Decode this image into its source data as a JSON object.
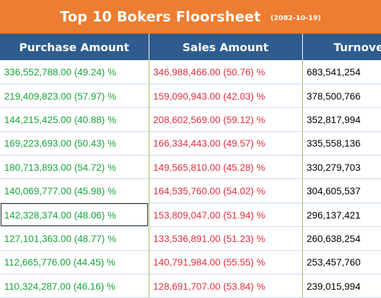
{
  "header": {
    "title": "Top 10 Bokers Floorsheet",
    "date": "(2082-10-19)"
  },
  "columns": [
    "Purchase Amount",
    "Sales Amount",
    "Turnove"
  ],
  "rows": [
    {
      "purchase": "336,552,788.00 (49.24) %",
      "sales": "346,988,466.00 (50.76) %",
      "turnover": "683,541,254"
    },
    {
      "purchase": "219,409,823.00 (57.97) %",
      "sales": "159,090,943.00 (42.03) %",
      "turnover": "378,500,766"
    },
    {
      "purchase": "144,215,425.00 (40.88) %",
      "sales": "208,602,569.00 (59.12) %",
      "turnover": "352,817,994"
    },
    {
      "purchase": "169,223,693.00 (50.43) %",
      "sales": "166,334,443.00 (49.57) %",
      "turnover": "335,558,136"
    },
    {
      "purchase": "180,713,893.00 (54.72) %",
      "sales": "149,565,810.00 (45.28) %",
      "turnover": "330,279,703"
    },
    {
      "purchase": "140,069,777.00 (45.98) %",
      "sales": "164,535,760.00 (54.02) %",
      "turnover": "304,605,537"
    },
    {
      "purchase": "142,328,374.00 (48.06) %",
      "sales": "153,809,047.00 (51.94) %",
      "turnover": "296,137,421"
    },
    {
      "purchase": "127,101,363.00 (48.77) %",
      "sales": "133,536,891.00 (51.23) %",
      "turnover": "260,638,254"
    },
    {
      "purchase": "112,665,776.00 (44.45) %",
      "sales": "140,791,984.00 (55.55) %",
      "turnover": "253,457,760"
    },
    {
      "purchase": "110,324,287.00 (46.16) %",
      "sales": "128,691,707.00 (53.84) %",
      "turnover": "239,015,994"
    }
  ],
  "colors": {
    "title_bg": "#ed7d31",
    "header_bg": "#2e5c8f",
    "purchase": "#17a43a",
    "sales": "#e0303f"
  }
}
